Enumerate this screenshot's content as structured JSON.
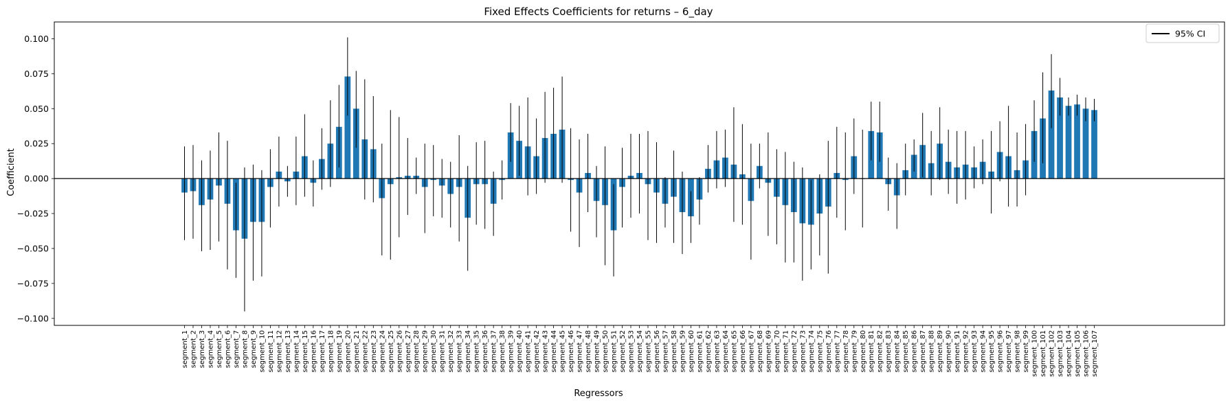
{
  "chart_data": {
    "type": "bar",
    "title": "Fixed Effects Coefficients for returns – 6_day",
    "xlabel": "Regressors",
    "ylabel": "Coefficient",
    "ylim": [
      -0.105,
      0.112
    ],
    "yticks": [
      -0.1,
      -0.075,
      -0.05,
      -0.025,
      0.0,
      0.025,
      0.05,
      0.075,
      0.1
    ],
    "ytick_labels": [
      "−0.100",
      "−0.075",
      "−0.050",
      "−0.025",
      "0.000",
      "0.025",
      "0.050",
      "0.075",
      "0.100"
    ],
    "bar_color": "#1f77b4",
    "errorbar_color": "#000000",
    "legend": {
      "label": "95% CI",
      "location": "upper right"
    },
    "grid": false,
    "zero_line": true,
    "categories": [
      "segment_1",
      "segment_2",
      "segment_3",
      "segment_4",
      "segment_5",
      "segment_6",
      "segment_7",
      "segment_8",
      "segment_9",
      "segment_10",
      "segment_11",
      "segment_12",
      "segment_13",
      "segment_14",
      "segment_15",
      "segment_16",
      "segment_17",
      "segment_18",
      "segment_19",
      "segment_20",
      "segment_21",
      "segment_22",
      "segment_23",
      "segment_24",
      "segment_25",
      "segment_26",
      "segment_27",
      "segment_28",
      "segment_29",
      "segment_30",
      "segment_31",
      "segment_32",
      "segment_33",
      "segment_34",
      "segment_35",
      "segment_36",
      "segment_37",
      "segment_38",
      "segment_39",
      "segment_40",
      "segment_41",
      "segment_42",
      "segment_43",
      "segment_44",
      "segment_45",
      "segment_46",
      "segment_47",
      "segment_48",
      "segment_49",
      "segment_50",
      "segment_51",
      "segment_52",
      "segment_53",
      "segment_54",
      "segment_55",
      "segment_56",
      "segment_57",
      "segment_58",
      "segment_59",
      "segment_60",
      "segment_61",
      "segment_62",
      "segment_63",
      "segment_64",
      "segment_65",
      "segment_66",
      "segment_67",
      "segment_68",
      "segment_69",
      "segment_70",
      "segment_71",
      "segment_72",
      "segment_73",
      "segment_74",
      "segment_75",
      "segment_76",
      "segment_77",
      "segment_78",
      "segment_79",
      "segment_80",
      "segment_81",
      "segment_82",
      "segment_83",
      "segment_84",
      "segment_85",
      "segment_86",
      "segment_87",
      "segment_88",
      "segment_89",
      "segment_90",
      "segment_91",
      "segment_92",
      "segment_93",
      "segment_94",
      "segment_95",
      "segment_96",
      "segment_97",
      "segment_98",
      "segment_99",
      "segment_100",
      "segment_101",
      "segment_102",
      "segment_103",
      "segment_104",
      "segment_105",
      "segment_106",
      "segment_107"
    ],
    "values": [
      -0.01,
      -0.009,
      -0.019,
      -0.015,
      -0.005,
      -0.018,
      -0.037,
      -0.043,
      -0.031,
      -0.031,
      -0.006,
      0.005,
      -0.002,
      0.005,
      0.016,
      -0.003,
      0.014,
      0.025,
      0.037,
      0.073,
      0.05,
      0.028,
      0.021,
      -0.014,
      -0.004,
      0.001,
      0.002,
      0.002,
      -0.006,
      -0.001,
      -0.005,
      -0.011,
      -0.006,
      -0.028,
      -0.004,
      -0.004,
      -0.018,
      -0.001,
      0.033,
      0.027,
      0.023,
      0.016,
      0.029,
      0.032,
      0.035,
      -0.001,
      -0.01,
      0.004,
      -0.016,
      -0.019,
      -0.037,
      -0.006,
      0.002,
      0.004,
      -0.004,
      -0.01,
      -0.018,
      -0.013,
      -0.024,
      -0.027,
      -0.015,
      0.007,
      0.013,
      0.015,
      0.01,
      0.003,
      -0.016,
      0.009,
      -0.003,
      -0.013,
      -0.019,
      -0.024,
      -0.032,
      -0.033,
      -0.025,
      -0.02,
      0.004,
      -0.001,
      0.016,
      0.0,
      0.034,
      0.033,
      -0.004,
      -0.012,
      0.006,
      0.017,
      0.024,
      0.011,
      0.025,
      0.012,
      0.008,
      0.01,
      0.008,
      0.012,
      0.005,
      0.019,
      0.016,
      0.006,
      0.013,
      0.034,
      0.043,
      0.063,
      0.058,
      0.052,
      0.053,
      0.05,
      0.049
    ],
    "ci_lower": [
      -0.044,
      -0.043,
      -0.052,
      -0.051,
      -0.045,
      -0.065,
      -0.071,
      -0.095,
      -0.073,
      -0.07,
      -0.035,
      -0.02,
      -0.013,
      -0.019,
      -0.013,
      -0.02,
      -0.008,
      -0.006,
      0.008,
      0.045,
      0.022,
      -0.015,
      -0.017,
      -0.055,
      -0.058,
      -0.042,
      -0.026,
      -0.011,
      -0.039,
      -0.027,
      -0.028,
      -0.035,
      -0.045,
      -0.066,
      -0.033,
      -0.036,
      -0.041,
      -0.015,
      0.012,
      0.002,
      -0.012,
      -0.011,
      -0.003,
      0.0,
      -0.003,
      -0.038,
      -0.049,
      -0.024,
      -0.042,
      -0.062,
      -0.07,
      -0.035,
      -0.028,
      -0.025,
      -0.044,
      -0.046,
      -0.035,
      -0.046,
      -0.054,
      -0.046,
      -0.033,
      -0.01,
      -0.007,
      -0.006,
      -0.031,
      -0.033,
      -0.058,
      -0.007,
      -0.041,
      -0.047,
      -0.06,
      -0.06,
      -0.073,
      -0.065,
      -0.055,
      -0.068,
      -0.028,
      -0.037,
      -0.011,
      -0.035,
      0.013,
      0.012,
      -0.023,
      -0.036,
      -0.012,
      0.005,
      0.001,
      -0.012,
      -0.001,
      -0.011,
      -0.018,
      -0.015,
      -0.007,
      -0.004,
      -0.025,
      -0.002,
      -0.02,
      -0.02,
      -0.012,
      0.012,
      0.011,
      0.036,
      0.045,
      0.045,
      0.045,
      0.041,
      0.041
    ],
    "ci_upper": [
      0.023,
      0.024,
      0.013,
      0.02,
      0.033,
      0.027,
      -0.003,
      0.008,
      0.01,
      0.006,
      0.021,
      0.03,
      0.009,
      0.03,
      0.046,
      0.013,
      0.036,
      0.056,
      0.067,
      0.101,
      0.077,
      0.071,
      0.059,
      0.025,
      0.049,
      0.044,
      0.029,
      0.015,
      0.025,
      0.024,
      0.014,
      0.012,
      0.031,
      0.009,
      0.026,
      0.027,
      0.005,
      0.013,
      0.054,
      0.052,
      0.058,
      0.043,
      0.062,
      0.065,
      0.073,
      0.036,
      0.028,
      0.032,
      0.009,
      0.023,
      -0.004,
      0.022,
      0.032,
      0.032,
      0.034,
      0.026,
      0.001,
      0.02,
      0.005,
      -0.009,
      0.001,
      0.024,
      0.034,
      0.035,
      0.051,
      0.039,
      0.025,
      0.025,
      0.033,
      0.021,
      0.019,
      0.012,
      0.008,
      -0.001,
      0.003,
      0.027,
      0.037,
      0.033,
      0.043,
      0.035,
      0.055,
      0.055,
      0.015,
      0.011,
      0.025,
      0.028,
      0.047,
      0.034,
      0.051,
      0.035,
      0.034,
      0.034,
      0.023,
      0.028,
      0.034,
      0.041,
      0.052,
      0.033,
      0.039,
      0.056,
      0.076,
      0.089,
      0.072,
      0.058,
      0.06,
      0.058,
      0.057
    ]
  }
}
